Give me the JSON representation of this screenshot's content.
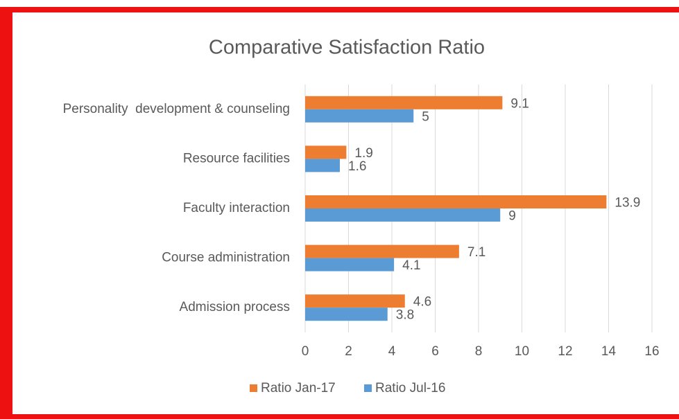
{
  "chart_data": {
    "type": "hbar",
    "title": "Comparative Satisfaction Ratio",
    "categories": [
      "Personality  development & counseling",
      "Resource facilities",
      "Faculty interaction",
      "Course administration",
      "Admission process"
    ],
    "series": [
      {
        "name": "Ratio Jan-17",
        "color": "#ed7d31",
        "values": [
          9.1,
          1.9,
          13.9,
          7.1,
          4.6
        ]
      },
      {
        "name": "Ratio Jul-16",
        "color": "#5b9bd5",
        "values": [
          5,
          1.6,
          9,
          4.1,
          3.8
        ]
      }
    ],
    "xlim": [
      0,
      16
    ],
    "xticks": [
      0,
      2,
      4,
      6,
      8,
      10,
      12,
      14,
      16
    ],
    "grid": true,
    "legend": "bottom"
  }
}
